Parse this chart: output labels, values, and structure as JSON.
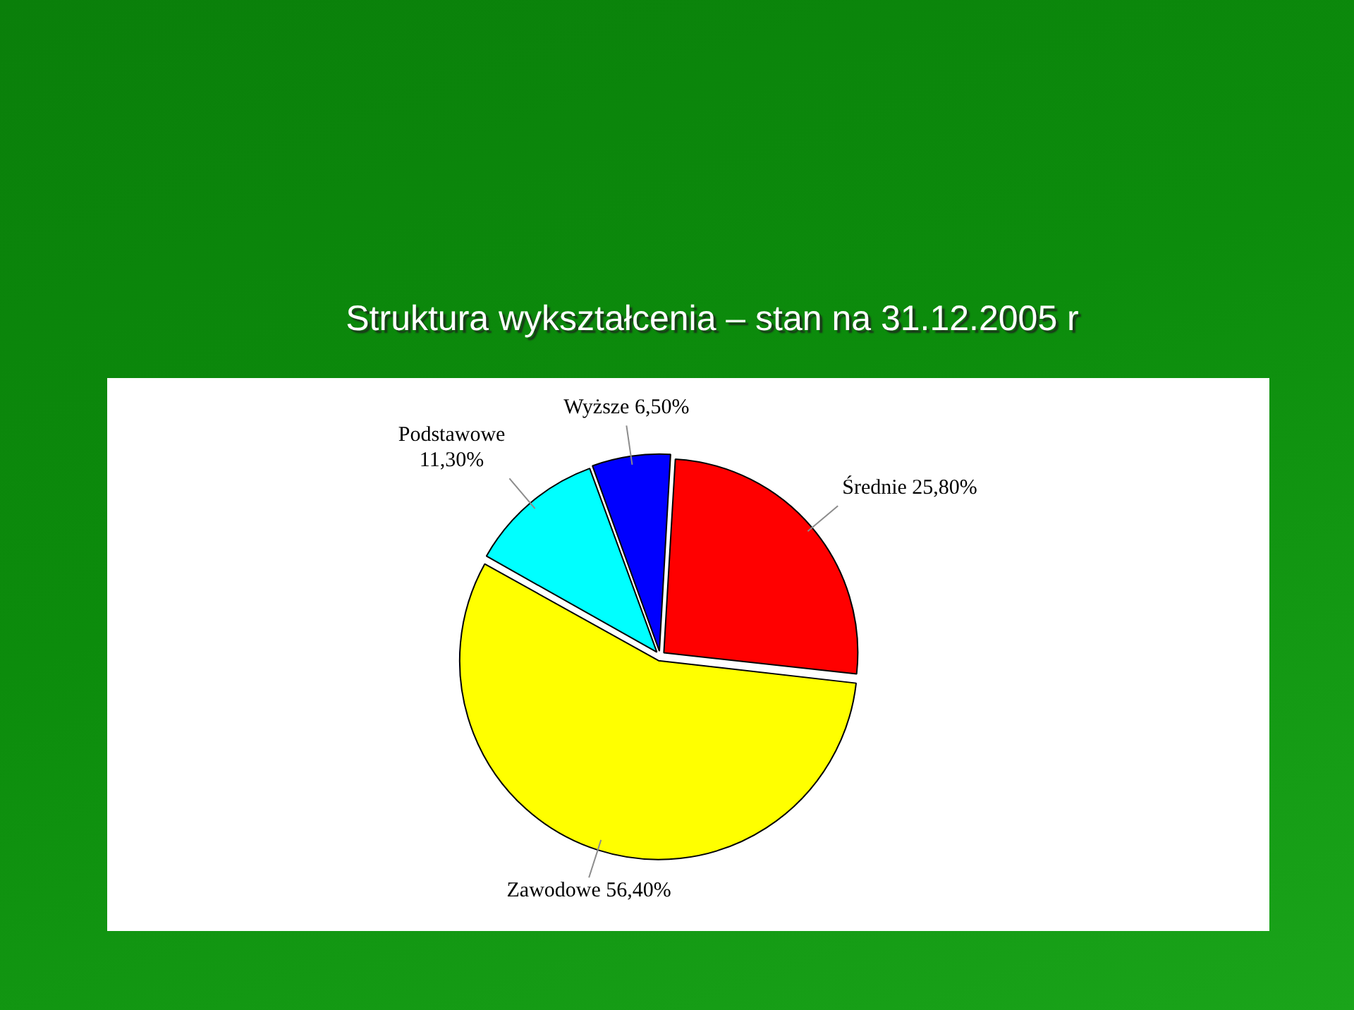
{
  "chart_data": {
    "type": "pie",
    "title": "Struktura wykształcenia – stan na 31.12.2005 r",
    "categories": [
      "Wyższe",
      "Średnie",
      "Zawodowe",
      "Podstawowe"
    ],
    "values": [
      6.5,
      25.8,
      56.4,
      11.3
    ],
    "colors": [
      "#0000ff",
      "#ff0000",
      "#ffff00",
      "#00ffff"
    ],
    "value_labels": [
      "6,50%",
      "25,80%",
      "56,40%",
      "11,30%"
    ]
  }
}
